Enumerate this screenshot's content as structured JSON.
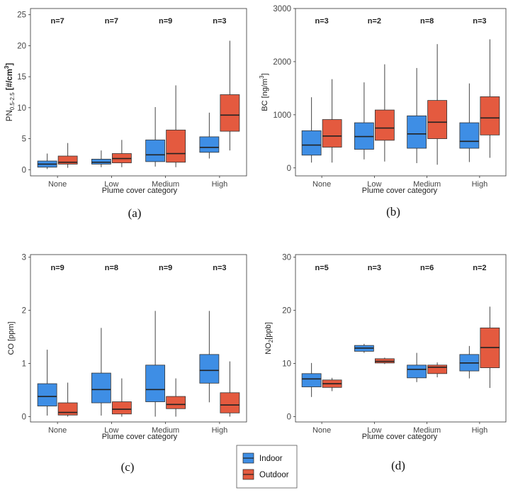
{
  "legend": {
    "items": [
      {
        "label": "Indoor",
        "color": "#3e8ee5"
      },
      {
        "label": "Outdoor",
        "color": "#e45a3f"
      }
    ]
  },
  "chart_data": [
    {
      "type": "box",
      "panel": "(a)",
      "title": "",
      "xlabel": "Plume cover category",
      "ylabel": "PN",
      "ylabel_sub": "0.5-2.5",
      "ylabel_unit": "[#/cm",
      "ylabel_sup": "3",
      "ylabel_close": "]",
      "ylim": [
        -1,
        26
      ],
      "yticks": [
        0,
        5,
        10,
        15,
        20,
        25
      ],
      "categories": [
        "None",
        "Low",
        "Medium",
        "High"
      ],
      "n_labels": [
        "n=7",
        "n=7",
        "n=9",
        "n=3"
      ],
      "series": [
        {
          "name": "Indoor",
          "boxes": [
            {
              "min": 0.1,
              "q1": 0.4,
              "median": 0.9,
              "q3": 1.4,
              "max": 2.6
            },
            {
              "min": 0.4,
              "q1": 0.9,
              "median": 1.2,
              "q3": 1.7,
              "max": 3.1
            },
            {
              "min": 0.5,
              "q1": 1.3,
              "median": 2.4,
              "q3": 4.8,
              "max": 10.1
            },
            {
              "min": 1.8,
              "q1": 2.8,
              "median": 3.6,
              "q3": 5.3,
              "max": 9.2
            }
          ]
        },
        {
          "name": "Outdoor",
          "boxes": [
            {
              "min": 0.3,
              "q1": 0.9,
              "median": 1.2,
              "q3": 2.2,
              "max": 4.3
            },
            {
              "min": 0.4,
              "q1": 1.1,
              "median": 1.8,
              "q3": 2.6,
              "max": 4.8
            },
            {
              "min": 0.4,
              "q1": 1.2,
              "median": 2.6,
              "q3": 6.4,
              "max": 13.6
            },
            {
              "min": 3.1,
              "q1": 6.2,
              "median": 8.8,
              "q3": 12.1,
              "max": 20.8
            }
          ]
        }
      ]
    },
    {
      "type": "box",
      "panel": "(b)",
      "title": "",
      "xlabel": "Plume cover category",
      "ylabel": "BC [ng/m",
      "ylabel_sup": "3",
      "ylabel_close": "]",
      "ylim": [
        -150,
        3000
      ],
      "yticks": [
        0,
        1000,
        2000,
        3000
      ],
      "categories": [
        "None",
        "Low",
        "Medium",
        "High"
      ],
      "n_labels": [
        "n=3",
        "n=2",
        "n=8",
        "n=3"
      ],
      "series": [
        {
          "name": "Indoor",
          "boxes": [
            {
              "min": 100,
              "q1": 240,
              "median": 430,
              "q3": 700,
              "max": 1330
            },
            {
              "min": 160,
              "q1": 350,
              "median": 590,
              "q3": 850,
              "max": 1610
            },
            {
              "min": 90,
              "q1": 370,
              "median": 640,
              "q3": 980,
              "max": 1880
            },
            {
              "min": 110,
              "q1": 370,
              "median": 500,
              "q3": 850,
              "max": 1590
            }
          ]
        },
        {
          "name": "Outdoor",
          "boxes": [
            {
              "min": 100,
              "q1": 390,
              "median": 600,
              "q3": 910,
              "max": 1670
            },
            {
              "min": 120,
              "q1": 520,
              "median": 750,
              "q3": 1090,
              "max": 1950
            },
            {
              "min": 60,
              "q1": 550,
              "median": 860,
              "q3": 1270,
              "max": 2330
            },
            {
              "min": 190,
              "q1": 620,
              "median": 940,
              "q3": 1340,
              "max": 2420
            }
          ]
        }
      ]
    },
    {
      "type": "box",
      "panel": "(c)",
      "title": "",
      "xlabel": "Plume cover category",
      "ylabel": "CO [ppm]",
      "ylim": [
        -0.1,
        3.05
      ],
      "yticks": [
        0,
        1,
        2,
        3
      ],
      "categories": [
        "None",
        "Low",
        "Medium",
        "High"
      ],
      "n_labels": [
        "n=9",
        "n=8",
        "n=9",
        "n=3"
      ],
      "series": [
        {
          "name": "Indoor",
          "boxes": [
            {
              "min": 0.02,
              "q1": 0.2,
              "median": 0.38,
              "q3": 0.62,
              "max": 1.26
            },
            {
              "min": 0.02,
              "q1": 0.26,
              "median": 0.51,
              "q3": 0.82,
              "max": 1.67
            },
            {
              "min": 0.0,
              "q1": 0.28,
              "median": 0.51,
              "q3": 0.97,
              "max": 1.99
            },
            {
              "min": 0.27,
              "q1": 0.63,
              "median": 0.87,
              "q3": 1.17,
              "max": 1.99
            }
          ]
        },
        {
          "name": "Outdoor",
          "boxes": [
            {
              "min": 0.0,
              "q1": 0.03,
              "median": 0.08,
              "q3": 0.26,
              "max": 0.64
            },
            {
              "min": 0.0,
              "q1": 0.05,
              "median": 0.14,
              "q3": 0.28,
              "max": 0.72
            },
            {
              "min": 0.0,
              "q1": 0.15,
              "median": 0.23,
              "q3": 0.38,
              "max": 0.72
            },
            {
              "min": 0.0,
              "q1": 0.07,
              "median": 0.22,
              "q3": 0.45,
              "max": 1.04
            }
          ]
        }
      ]
    },
    {
      "type": "box",
      "panel": "(d)",
      "title": "",
      "xlabel": "Plume cover category",
      "ylabel": "NO",
      "ylabel_sub": "2",
      "ylabel_unit": "[ppb]",
      "ylim": [
        -1,
        30.5
      ],
      "yticks": [
        0,
        10,
        20,
        30
      ],
      "categories": [
        "None",
        "Low",
        "Medium",
        "High"
      ],
      "n_labels": [
        "n=5",
        "n=3",
        "n=6",
        "n=2"
      ],
      "series": [
        {
          "name": "Indoor",
          "boxes": [
            {
              "min": 3.7,
              "q1": 5.6,
              "median": 7.1,
              "q3": 8.1,
              "max": 10.1
            },
            {
              "min": 12.0,
              "q1": 12.3,
              "median": 12.9,
              "q3": 13.4,
              "max": 13.7
            },
            {
              "min": 6.5,
              "q1": 7.3,
              "median": 8.9,
              "q3": 9.7,
              "max": 12.0
            },
            {
              "min": 7.2,
              "q1": 8.6,
              "median": 10.1,
              "q3": 11.7,
              "max": 13.3
            }
          ]
        },
        {
          "name": "Outdoor",
          "boxes": [
            {
              "min": 4.8,
              "q1": 5.5,
              "median": 6.2,
              "q3": 6.9,
              "max": 7.3
            },
            {
              "min": 9.9,
              "q1": 10.1,
              "median": 10.4,
              "q3": 10.9,
              "max": 11.1
            },
            {
              "min": 7.4,
              "q1": 8.1,
              "median": 9.3,
              "q3": 9.7,
              "max": 10.2
            },
            {
              "min": 5.4,
              "q1": 9.2,
              "median": 13.0,
              "q3": 16.7,
              "max": 20.7
            }
          ]
        }
      ]
    }
  ]
}
